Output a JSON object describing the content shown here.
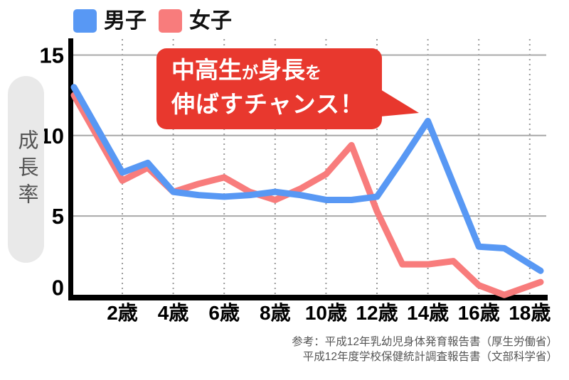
{
  "legend": {
    "items": [
      {
        "label": "男子",
        "color": "#5898f4"
      },
      {
        "label": "女子",
        "color": "#f87c7c"
      }
    ]
  },
  "y_axis_label": "成長率",
  "callout": {
    "l1a": "中高生",
    "l1b": "が",
    "l1c": "身長",
    "l1d": "を",
    "line2": "伸ばすチャンス！",
    "bg": "#e8382e",
    "text_color": "#ffffff"
  },
  "source": {
    "line1": "参考：平成12年乳幼児身体発育報告書（厚生労働省）",
    "line2": "平成12年度学校保健統計調査報告書（文部科学省）"
  },
  "chart_data": {
    "type": "line",
    "title": "",
    "annotation": "中高生が身長を伸ばすチャンス！",
    "ylabel": "成長率",
    "x_unit": "歳",
    "x": [
      1,
      2,
      3,
      4,
      5,
      6,
      7,
      8,
      9,
      10,
      11,
      12,
      13,
      14,
      15,
      16,
      17,
      18
    ],
    "series": [
      {
        "name": "男子",
        "color": "#5898f4",
        "values": [
          13.0,
          7.7,
          8.3,
          6.5,
          6.3,
          6.2,
          6.3,
          6.5,
          6.3,
          6.0,
          6.0,
          6.2,
          8.5,
          10.9,
          7.0,
          3.1,
          3.0,
          1.6
        ]
      },
      {
        "name": "女子",
        "color": "#f87c7c",
        "values": [
          12.5,
          7.2,
          8.0,
          6.5,
          7.0,
          7.4,
          6.5,
          6.0,
          6.7,
          7.6,
          9.4,
          5.3,
          2.0,
          2.0,
          2.2,
          0.7,
          0.1,
          0.9
        ]
      }
    ],
    "xticks": [
      {
        "age": 2,
        "label": "2歳"
      },
      {
        "age": 4,
        "label": "4歳"
      },
      {
        "age": 6,
        "label": "6歳"
      },
      {
        "age": 8,
        "label": "8歳"
      },
      {
        "age": 10,
        "label": "10歳"
      },
      {
        "age": 12,
        "label": "12歳"
      },
      {
        "age": 14,
        "label": "14歳"
      },
      {
        "age": 16,
        "label": "16歳"
      },
      {
        "age": 18,
        "label": "18歳"
      }
    ],
    "yticks": [
      15,
      10,
      5,
      0
    ],
    "ylim": [
      0,
      15.8
    ],
    "grid": {
      "horizontal": "solid",
      "vertical": "dotted"
    },
    "legend_position": "top-left"
  }
}
